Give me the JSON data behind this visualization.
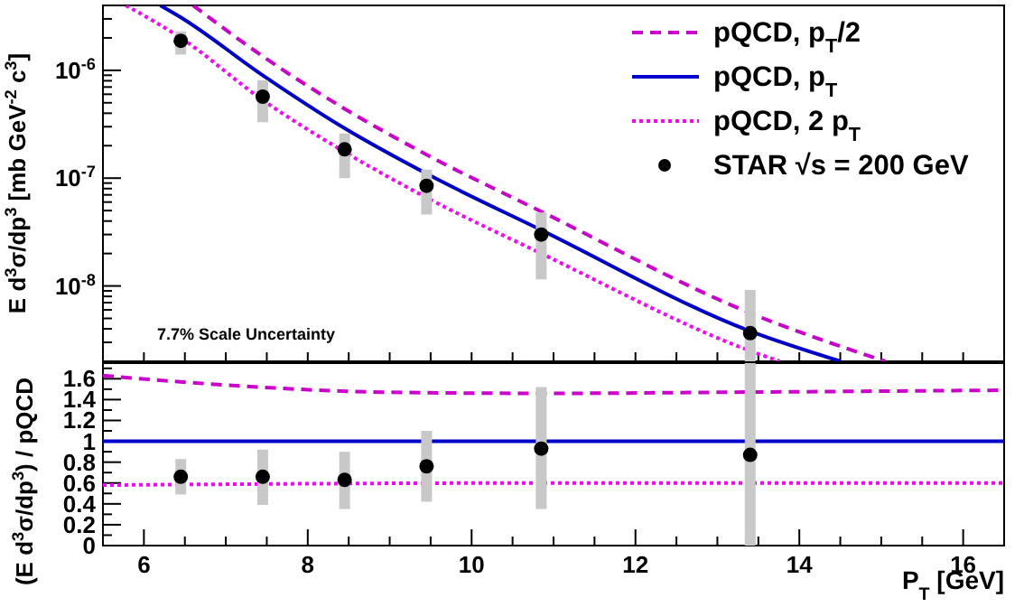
{
  "chart_data": [
    {
      "type": "line",
      "ylabel": "E d$^{3}$σ/dp$^{3}$ [mb GeV$^{-2}$ c$^{3}$]",
      "log": true,
      "legend": "top right",
      "tick_labels": "y",
      "annotations": [
        "7.7% Scale Uncertainty"
      ],
      "xlim": [
        5.5,
        16.5
      ],
      "xticks": [
        {
          "value": 6,
          "label": null
        },
        {
          "value": 6.5,
          "label": null
        },
        {
          "value": 7,
          "label": null
        },
        {
          "value": 7.5,
          "label": null
        },
        {
          "value": 8,
          "label": null
        },
        {
          "value": 8.5,
          "label": null
        },
        {
          "value": 9,
          "label": null
        },
        {
          "value": 9.5,
          "label": null
        },
        {
          "value": 10,
          "label": null
        },
        {
          "value": 10.5,
          "label": null
        },
        {
          "value": 11,
          "label": null
        },
        {
          "value": 11.5,
          "label": null
        },
        {
          "value": 12,
          "label": null
        },
        {
          "value": 12.5,
          "label": null
        },
        {
          "value": 13,
          "label": null
        },
        {
          "value": 13.5,
          "label": null
        },
        {
          "value": 14,
          "label": null
        },
        {
          "value": 14.5,
          "label": null
        },
        {
          "value": 15,
          "label": null
        },
        {
          "value": 15.5,
          "label": null
        },
        {
          "value": 16,
          "label": null
        }
      ],
      "ylim": [
        2e-09,
        4e-06
      ],
      "yticks": [
        {
          "value": 2e-09,
          "label": null
        },
        {
          "value": 3e-09,
          "label": null
        },
        {
          "value": 4e-09,
          "label": null
        },
        {
          "value": 5e-09,
          "label": null
        },
        {
          "value": 6e-09,
          "label": null
        },
        {
          "value": 7e-09,
          "label": null
        },
        {
          "value": 8e-09,
          "label": null
        },
        {
          "value": 9e-09,
          "label": null
        },
        {
          "value": 1e-08,
          "label": "10$^{-8}$"
        },
        {
          "value": 2e-08,
          "label": null
        },
        {
          "value": 3e-08,
          "label": null
        },
        {
          "value": 4e-08,
          "label": null
        },
        {
          "value": 5e-08,
          "label": null
        },
        {
          "value": 6e-08,
          "label": null
        },
        {
          "value": 7e-08,
          "label": null
        },
        {
          "value": 8e-08,
          "label": null
        },
        {
          "value": 9e-08,
          "label": null
        },
        {
          "value": 1e-07,
          "label": "10$^{-7}$"
        },
        {
          "value": 2e-07,
          "label": null
        },
        {
          "value": 3e-07,
          "label": null
        },
        {
          "value": 4e-07,
          "label": null
        },
        {
          "value": 5e-07,
          "label": null
        },
        {
          "value": 6e-07,
          "label": null
        },
        {
          "value": 7e-07,
          "label": null
        },
        {
          "value": 8e-07,
          "label": null
        },
        {
          "value": 9e-07,
          "label": null
        },
        {
          "value": 1e-06,
          "label": "10$^{-6}$"
        },
        {
          "value": 2e-06,
          "label": null
        },
        {
          "value": 3e-06,
          "label": null
        },
        {
          "value": 4e-06,
          "label": null
        }
      ],
      "series": [
        {
          "name": "pQCD, p$_{T}$/2",
          "type": "line",
          "line_style": "dashed",
          "color": "#cc00cc",
          "x": [
            6.6,
            7.45,
            8.45,
            9.45,
            10.85,
            13.4,
            15.05
          ],
          "values": [
            4e-06,
            1.35e-06,
            4.4e-07,
            1.65e-07,
            4.9e-08,
            5.6e-09,
            2e-09
          ]
        },
        {
          "name": "pQCD, p$_{T}$",
          "type": "line",
          "line_style": "solid",
          "color": "#0000cc",
          "x": [
            6.2,
            6.45,
            7.45,
            8.45,
            9.45,
            10.85,
            13.4,
            14.5
          ],
          "values": [
            4e-06,
            3.1e-06,
            9e-07,
            2.9e-07,
            1.1e-07,
            3.3e-08,
            3.8e-09,
            2e-09
          ]
        },
        {
          "name": "pQCD, 2 p$_{T}$",
          "type": "line",
          "line_style": "dotted",
          "color": "#ff00ff",
          "x": [
            5.78,
            6.45,
            7.45,
            8.45,
            9.45,
            10.85,
            13.4,
            13.76
          ],
          "values": [
            4e-06,
            2e-06,
            5.3e-07,
            1.75e-07,
            6.6e-08,
            2e-08,
            2.5e-09,
            2e-09
          ]
        },
        {
          "name": "STAR √s = 200 GeV",
          "type": "scatter",
          "marker": "circle",
          "color": "#000000",
          "x": [
            6.45,
            7.45,
            8.45,
            9.45,
            10.85,
            13.4
          ],
          "values": [
            1.88e-06,
            5.7e-07,
            1.85e-07,
            8.5e-08,
            3e-08,
            3.65e-09
          ],
          "errors": [
            [
              1.4e-06,
              2.3e-06
            ],
            [
              3.3e-07,
              8.1e-07
            ],
            [
              1e-07,
              2.6e-07
            ],
            [
              4.6e-08,
              1.2e-07
            ],
            [
              1.15e-08,
              4.8e-08
            ],
            [
              2e-09,
              9.2e-09
            ]
          ]
        }
      ]
    },
    {
      "type": "line",
      "xlabel": "P$_{T}$ [GeV]",
      "ylabel": "(E d$^{3}$σ/dp$^{3}$) / pQCD",
      "xlim": [
        5.5,
        16.5
      ],
      "xticks": [
        6,
        {
          "value": 6.5,
          "label": null
        },
        {
          "value": 7,
          "label": null
        },
        {
          "value": 7.5,
          "label": null
        },
        8,
        {
          "value": 8.5,
          "label": null
        },
        {
          "value": 9,
          "label": null
        },
        {
          "value": 9.5,
          "label": null
        },
        10,
        {
          "value": 10.5,
          "label": null
        },
        {
          "value": 11,
          "label": null
        },
        {
          "value": 11.5,
          "label": null
        },
        12,
        {
          "value": 12.5,
          "label": null
        },
        {
          "value": 13,
          "label": null
        },
        {
          "value": 13.5,
          "label": null
        },
        14,
        {
          "value": 14.5,
          "label": null
        },
        {
          "value": 15,
          "label": null
        },
        {
          "value": 15.5,
          "label": null
        },
        16
      ],
      "ylim": [
        0,
        1.75
      ],
      "yticks": [
        0,
        {
          "value": 0.1,
          "label": null
        },
        0.2,
        {
          "value": 0.3,
          "label": null
        },
        0.4,
        {
          "value": 0.5,
          "label": null
        },
        0.6,
        {
          "value": 0.7,
          "label": null
        },
        0.8,
        {
          "value": 0.9,
          "label": null
        },
        1,
        {
          "value": 1.1,
          "label": null
        },
        1.2,
        {
          "value": 1.3,
          "label": null
        },
        1.4,
        {
          "value": 1.5,
          "label": null
        },
        1.6,
        {
          "value": 1.7,
          "label": null
        }
      ],
      "series": [
        {
          "type": "line",
          "line_style": "dashed",
          "color": "#cc00cc",
          "x": [
            5.5,
            7,
            9,
            11,
            13,
            16.5
          ],
          "values": [
            1.63,
            1.54,
            1.47,
            1.46,
            1.47,
            1.49
          ]
        },
        {
          "type": "line",
          "line_style": "solid",
          "color": "#0000cc",
          "x": [
            5.5,
            16.5
          ],
          "values": [
            1,
            1
          ]
        },
        {
          "type": "line",
          "line_style": "dotted",
          "color": "#ff00ff",
          "x": [
            5.5,
            10.8,
            16.5
          ],
          "values": [
            0.58,
            0.6,
            0.6
          ]
        },
        {
          "type": "scatter",
          "marker": "circle",
          "color": "#000000",
          "x": [
            6.45,
            7.45,
            8.45,
            9.45,
            10.85,
            13.4
          ],
          "values": [
            0.66,
            0.66,
            0.63,
            0.76,
            0.93,
            0.87
          ],
          "errors": [
            [
              0.49,
              0.83
            ],
            [
              0.39,
              0.92
            ],
            [
              0.35,
              0.9
            ],
            [
              0.42,
              1.1
            ],
            [
              0.35,
              1.52
            ],
            [
              0,
              1.75
            ]
          ]
        }
      ]
    }
  ]
}
